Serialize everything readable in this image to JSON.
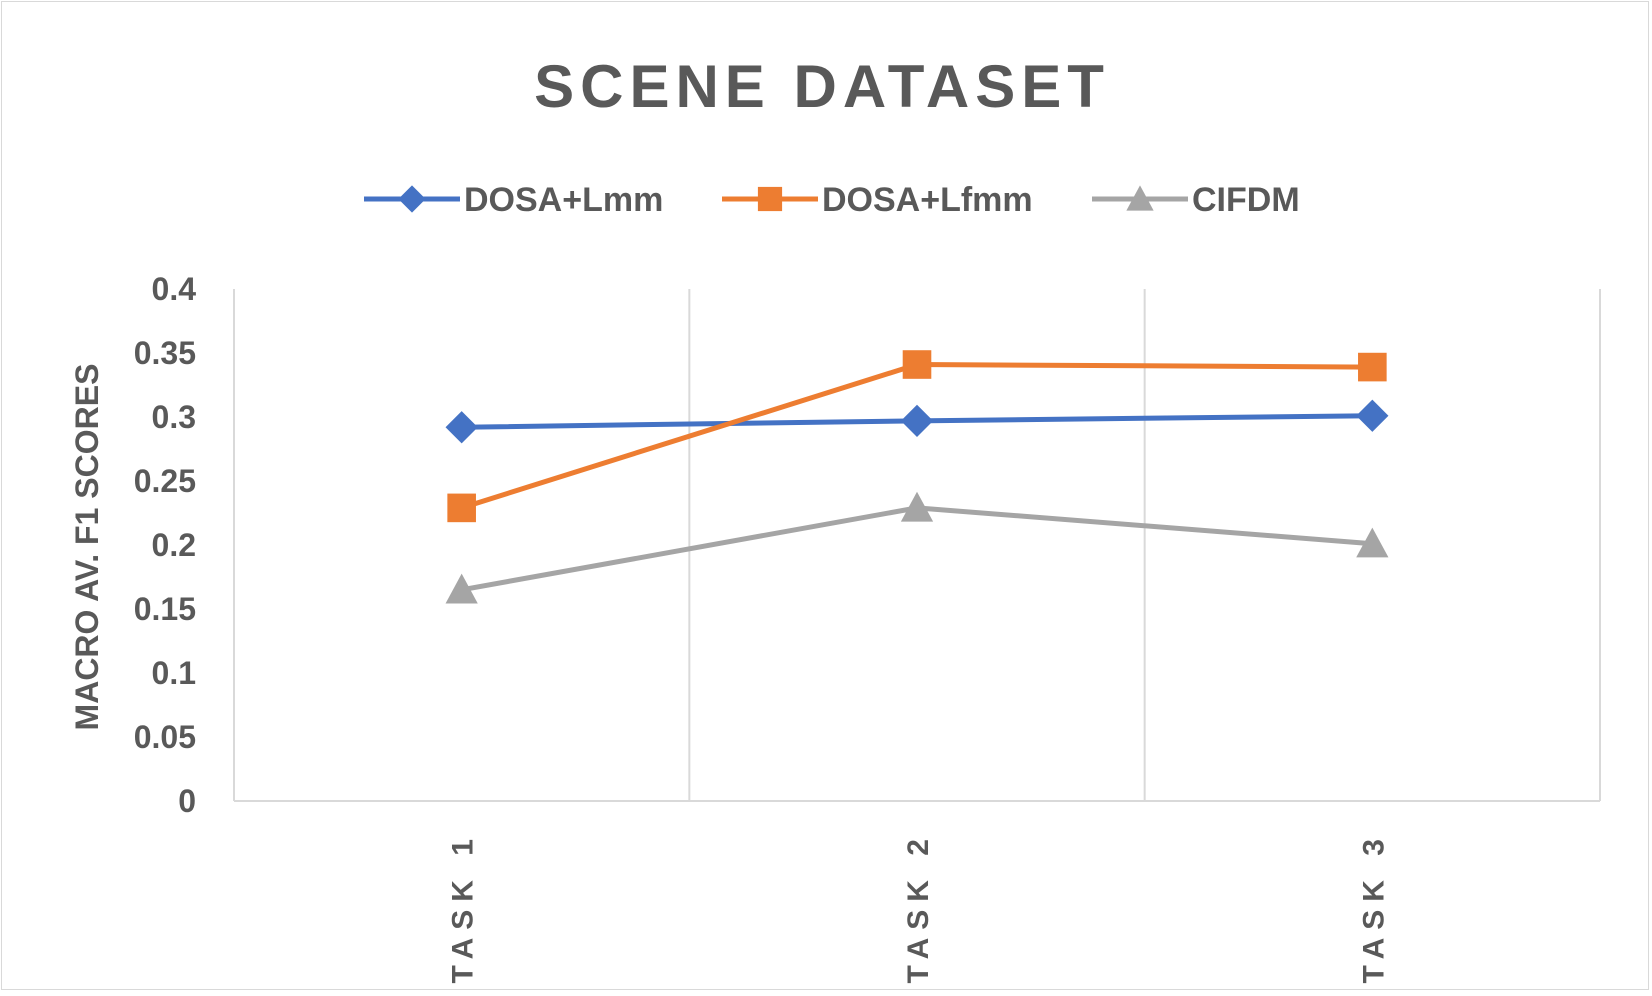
{
  "chart_data": {
    "type": "line",
    "title": "SCENE DATASET",
    "xlabel": "",
    "ylabel": "MACRO AV. F1 SCORES",
    "categories": [
      "TASK 1",
      "TASK 2",
      "TASK 3"
    ],
    "ylim": [
      0,
      0.4
    ],
    "yticks": [
      0,
      0.05,
      0.1,
      0.15,
      0.2,
      0.25,
      0.3,
      0.35,
      0.4
    ],
    "ytick_labels": [
      "0",
      "0.05",
      "0.1",
      "0.15",
      "0.2",
      "0.25",
      "0.3",
      "0.35",
      "0.4"
    ],
    "grid": "vertical",
    "legend_position": "top",
    "series": [
      {
        "name": "DOSA+Lmm",
        "values": [
          0.292,
          0.297,
          0.301
        ],
        "color": "#4472c4",
        "marker": "diamond"
      },
      {
        "name": "DOSA+Lfmm",
        "values": [
          0.229,
          0.341,
          0.339
        ],
        "color": "#ed7d31",
        "marker": "square"
      },
      {
        "name": "CIFDM",
        "values": [
          0.165,
          0.229,
          0.201
        ],
        "color": "#a5a5a5",
        "marker": "triangle"
      }
    ]
  }
}
